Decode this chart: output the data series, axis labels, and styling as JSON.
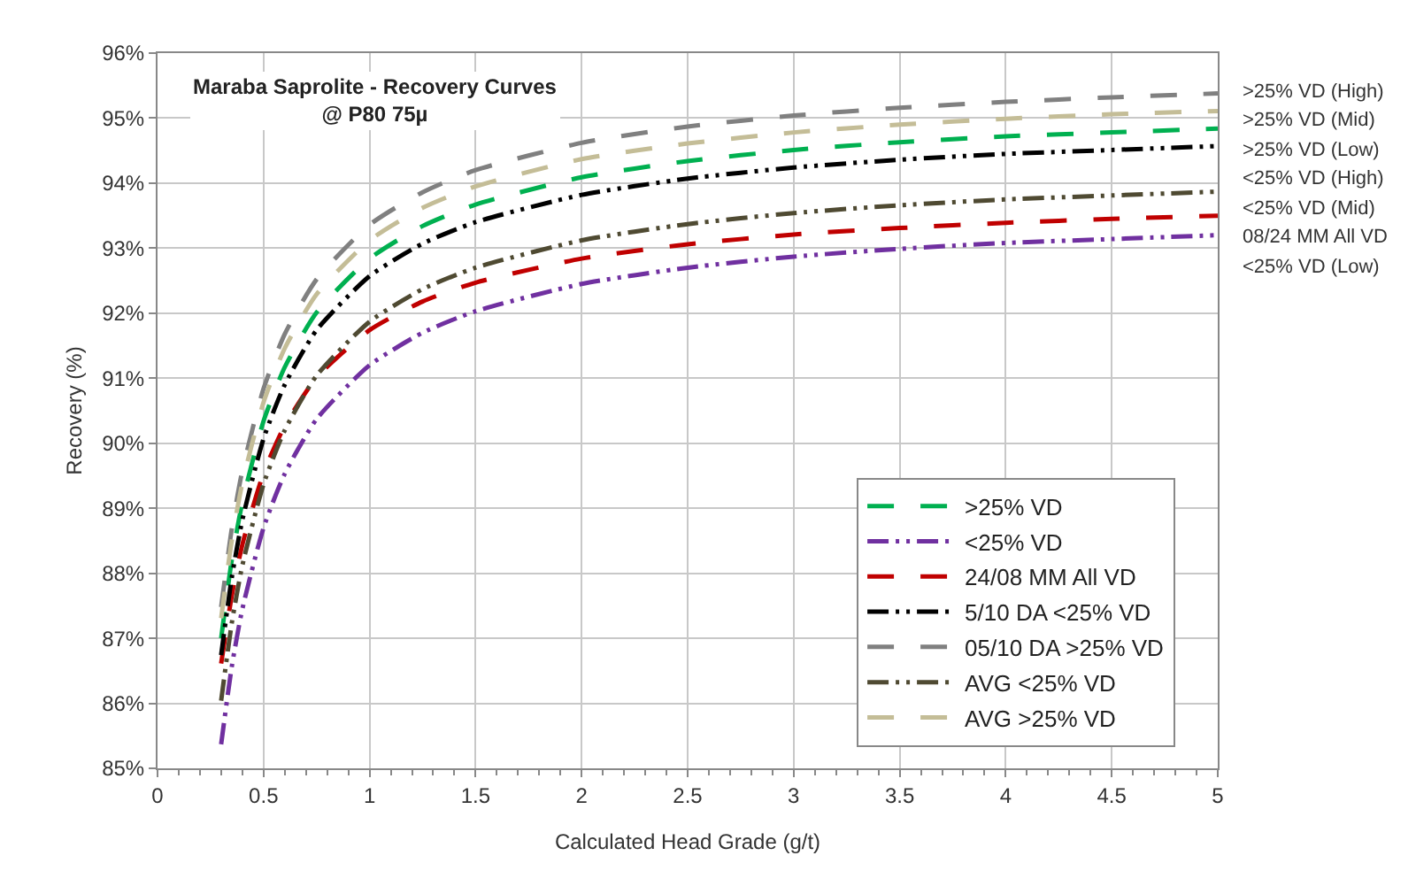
{
  "chart_data": {
    "type": "line",
    "title": "Maraba Saprolite - Recovery Curves\n@ P80 75µ",
    "xlabel": "Calculated Head Grade (g/t)",
    "ylabel": "Recovery (%)",
    "x": [
      0.3,
      0.35,
      0.4,
      0.5,
      0.6,
      0.75,
      1,
      1.25,
      1.5,
      2,
      2.5,
      3,
      3.5,
      4,
      4.5,
      5
    ],
    "series": [
      {
        "name": ">25% VD",
        "color": "#00b050",
        "line_style": "dashed",
        "values": [
          87.0,
          88.2,
          89.09,
          90.34,
          91.17,
          92.01,
          92.84,
          93.34,
          93.67,
          94.09,
          94.34,
          94.51,
          94.63,
          94.72,
          94.78,
          94.84
        ]
      },
      {
        "name": "<25% VD",
        "color": "#7030a0",
        "line_style": "dotted",
        "values": [
          85.37,
          86.56,
          87.45,
          88.7,
          89.53,
          90.37,
          91.2,
          91.7,
          92.03,
          92.45,
          92.7,
          92.87,
          92.99,
          93.08,
          93.14,
          93.2
        ]
      },
      {
        "name": "24/08 MM All VD",
        "color": "#c00000",
        "line_style": "dashed",
        "values": [
          86.61,
          87.65,
          88.44,
          89.54,
          90.27,
          91.01,
          91.74,
          92.18,
          92.47,
          92.84,
          93.06,
          93.21,
          93.31,
          93.39,
          93.45,
          93.5
        ]
      },
      {
        "name": "5/10 DA <25% VD",
        "color": "#000000",
        "line_style": "dotted",
        "values": [
          86.74,
          87.93,
          88.82,
          90.07,
          90.9,
          91.74,
          92.57,
          93.07,
          93.4,
          93.82,
          94.07,
          94.24,
          94.36,
          94.45,
          94.51,
          94.57
        ]
      },
      {
        "name": "05/10 DA >25% VD",
        "color": "#808080",
        "line_style": "dashed",
        "values": [
          87.48,
          88.68,
          89.58,
          90.84,
          91.68,
          92.52,
          93.36,
          93.86,
          94.2,
          94.62,
          94.87,
          95.04,
          95.16,
          95.25,
          95.32,
          95.38
        ]
      },
      {
        "name": "AVG <25% VD",
        "color": "#4f4a32",
        "line_style": "dotted",
        "values": [
          86.04,
          87.23,
          88.12,
          89.37,
          90.2,
          91.04,
          91.87,
          92.37,
          92.7,
          93.12,
          93.37,
          93.54,
          93.66,
          93.75,
          93.81,
          93.87
        ]
      },
      {
        "name": "AVG >25% VD",
        "color": "#c4bd97",
        "line_style": "dashed",
        "values": [
          87.31,
          88.5,
          89.39,
          90.63,
          91.46,
          92.29,
          93.12,
          93.62,
          93.95,
          94.37,
          94.61,
          94.78,
          94.9,
          94.99,
          95.06,
          95.11
        ]
      }
    ],
    "annotations": [
      ">25% VD (High)",
      ">25% VD (Mid)",
      ">25% VD (Low)",
      "<25% VD (High)",
      "<25% VD (Mid)",
      "08/24 MM All VD",
      "<25% VD (Low)"
    ],
    "xlim": [
      0,
      5
    ],
    "xticks": [
      0,
      0.5,
      1,
      1.5,
      2,
      2.5,
      3,
      3.5,
      4,
      4.5,
      5
    ],
    "ylim": [
      85,
      96
    ],
    "yticks": [
      {
        "value": 85,
        "label": "85%"
      },
      {
        "value": 86,
        "label": "86%"
      },
      {
        "value": 87,
        "label": "87%"
      },
      {
        "value": 88,
        "label": "88%"
      },
      {
        "value": 89,
        "label": "89%"
      },
      {
        "value": 90,
        "label": "90%"
      },
      {
        "value": 91,
        "label": "91%"
      },
      {
        "value": 92,
        "label": "92%"
      },
      {
        "value": 93,
        "label": "93%"
      },
      {
        "value": 94,
        "label": "94%"
      },
      {
        "value": 95,
        "label": "95%"
      },
      {
        "value": 96,
        "label": "96%"
      }
    ],
    "grid": true,
    "legend": "bottom right",
    "marker": "none"
  }
}
